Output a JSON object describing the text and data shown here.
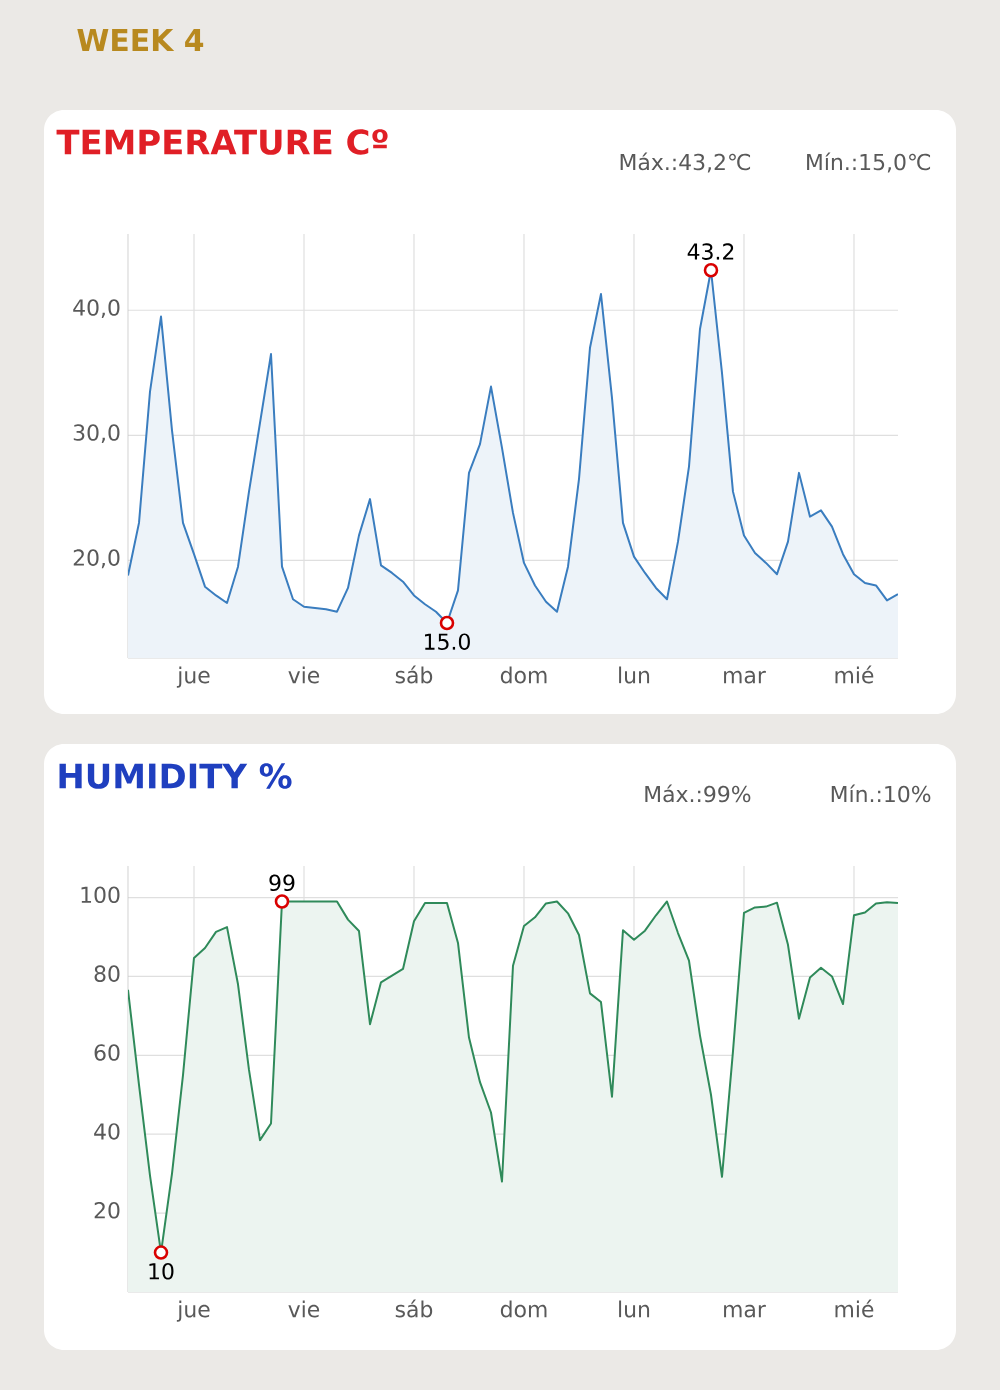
{
  "chart_data": [
    {
      "type": "area",
      "title": "TEMPERATURE Cº",
      "annotations": [
        "WEEK 4",
        "Máx.:43,2℃",
        "Mín.:15,0℃",
        {
          "text": "43.2",
          "y": 43.2
        },
        {
          "text": "15.0",
          "y": 15.0
        }
      ],
      "categories": [
        null,
        null,
        null,
        null,
        null,
        null,
        "jue",
        null,
        null,
        null,
        null,
        null,
        null,
        null,
        null,
        null,
        "vie",
        null,
        null,
        null,
        null,
        null,
        null,
        null,
        null,
        null,
        "sáb",
        null,
        null,
        null,
        null,
        null,
        null,
        null,
        null,
        null,
        "dom",
        null,
        null,
        null,
        null,
        null,
        null,
        null,
        null,
        null,
        "lun",
        null,
        null,
        null,
        null,
        null,
        null,
        null,
        null,
        null,
        "mar",
        null,
        null,
        null,
        null,
        null,
        null,
        null,
        null,
        null,
        "mié",
        null,
        null,
        null,
        null
      ],
      "series": [
        {
          "color": "#3a7dbf",
          "values": [
            18.8,
            23.0,
            33.5,
            39.5,
            30.4,
            23.0,
            20.5,
            17.9,
            17.2,
            16.6,
            19.5,
            25.5,
            31.0,
            36.5,
            19.5,
            16.9,
            16.3,
            16.2,
            16.1,
            15.9,
            17.8,
            22.0,
            24.9,
            19.6,
            19.0,
            18.3,
            17.2,
            16.5,
            15.9,
            15.0,
            17.6,
            27.0,
            29.3,
            33.9,
            29.0,
            23.8,
            19.8,
            18.0,
            16.7,
            15.9,
            19.5,
            26.5,
            37.0,
            41.3,
            33.0,
            23.0,
            20.3,
            19.0,
            17.8,
            16.9,
            21.5,
            27.5,
            38.5,
            43.2,
            35.0,
            25.5,
            22.0,
            20.6,
            19.8,
            18.9,
            21.5,
            27.0,
            23.5,
            24.0,
            22.7,
            20.5,
            18.9,
            18.2,
            18.0,
            16.8,
            17.3
          ]
        }
      ],
      "ylim": [
        12.2,
        46.1
      ],
      "yticks": [
        {
          "value": 20,
          "label": "20,0"
        },
        {
          "value": 30,
          "label": "30,0"
        },
        {
          "value": 40,
          "label": "40,0"
        }
      ],
      "grid": true
    },
    {
      "type": "area",
      "title": "HUMIDITY %",
      "annotations": [
        "Máx.:99%",
        "Mín.:10%",
        {
          "text": "99",
          "y": 99
        },
        {
          "text": "10",
          "y": 10
        }
      ],
      "categories": [
        null,
        null,
        null,
        null,
        null,
        null,
        "jue",
        null,
        null,
        null,
        null,
        null,
        null,
        null,
        null,
        null,
        "vie",
        null,
        null,
        null,
        null,
        null,
        null,
        null,
        null,
        null,
        "sáb",
        null,
        null,
        null,
        null,
        null,
        null,
        null,
        null,
        null,
        "dom",
        null,
        null,
        null,
        null,
        null,
        null,
        null,
        null,
        null,
        "lun",
        null,
        null,
        null,
        null,
        null,
        null,
        null,
        null,
        null,
        "mar",
        null,
        null,
        null,
        null,
        null,
        null,
        null,
        null,
        null,
        "mié",
        null,
        null,
        null,
        null
      ],
      "series": [
        {
          "color": "#2f8a5a",
          "values": [
            76.6,
            52.5,
            29.5,
            10,
            30,
            55,
            84.7,
            87.2,
            91.3,
            92.5,
            78,
            56.3,
            38.5,
            42.7,
            99,
            99,
            99,
            99,
            99,
            99,
            94.4,
            91.5,
            67.9,
            78.5,
            80.2,
            81.9,
            94,
            98.6,
            98.6,
            98.6,
            88.5,
            64.5,
            53.2,
            45.5,
            28.0,
            82.7,
            92.8,
            95,
            98.5,
            99,
            96,
            90.5,
            75.7,
            73.5,
            49.5,
            91.7,
            89.3,
            91.6,
            95.5,
            99,
            91,
            84,
            65,
            50,
            29.2,
            61,
            96.1,
            97.5,
            97.7,
            98.7,
            88,
            69.3,
            79.7,
            82.2,
            80,
            73,
            95.5,
            96.2,
            98.5,
            98.8,
            98.6
          ]
        }
      ],
      "ylim": [
        0,
        108
      ],
      "yticks": [
        20,
        40,
        60,
        80,
        100
      ],
      "grid": true
    }
  ]
}
